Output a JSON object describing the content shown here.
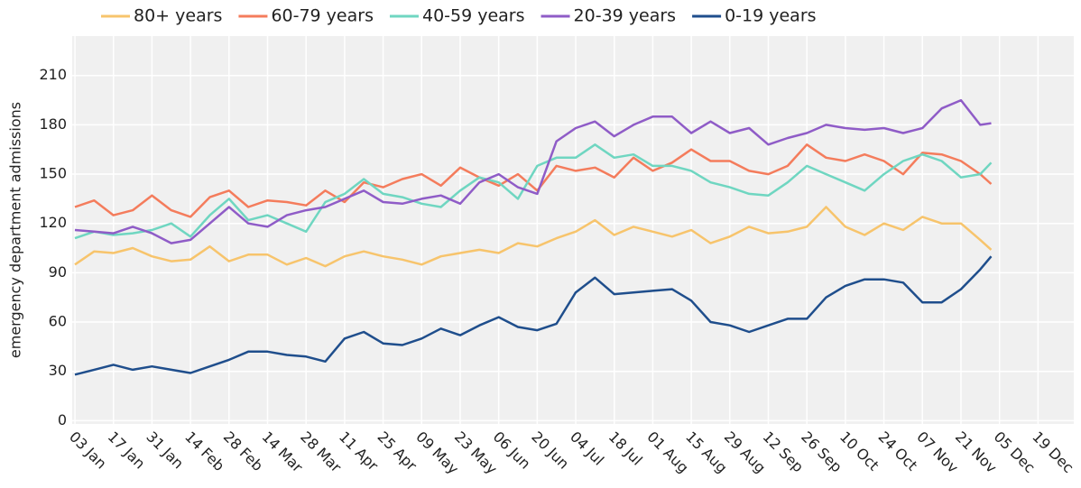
{
  "chart_data": {
    "type": "line",
    "y_label": "emergency department admissions",
    "x": [
      0,
      7,
      14,
      21,
      28,
      35,
      42,
      49,
      56,
      63,
      70,
      77,
      84,
      91,
      98,
      105,
      112,
      119,
      126,
      133,
      140,
      147,
      154,
      161,
      168,
      175,
      182,
      189,
      196,
      203,
      210,
      217,
      224,
      231,
      238,
      245,
      252,
      259,
      266,
      273,
      280,
      287,
      294,
      301,
      308,
      315,
      322,
      329,
      333
    ],
    "xlim": [
      -1,
      363
    ],
    "xticks": [
      {
        "value": 0,
        "label": "03 Jan"
      },
      {
        "value": 14,
        "label": "17 Jan"
      },
      {
        "value": 28,
        "label": "31 Jan"
      },
      {
        "value": 42,
        "label": "14 Feb"
      },
      {
        "value": 56,
        "label": "28 Feb"
      },
      {
        "value": 70,
        "label": "14 Mar"
      },
      {
        "value": 84,
        "label": "28 Mar"
      },
      {
        "value": 98,
        "label": "11 Apr"
      },
      {
        "value": 112,
        "label": "25 Apr"
      },
      {
        "value": 126,
        "label": "09 May"
      },
      {
        "value": 140,
        "label": "23 May"
      },
      {
        "value": 154,
        "label": "06 Jun"
      },
      {
        "value": 168,
        "label": "20 Jun"
      },
      {
        "value": 182,
        "label": "04 Jul"
      },
      {
        "value": 196,
        "label": "18 Jul"
      },
      {
        "value": 210,
        "label": "01 Aug"
      },
      {
        "value": 224,
        "label": "15 Aug"
      },
      {
        "value": 238,
        "label": "29 Aug"
      },
      {
        "value": 252,
        "label": "12 Sep"
      },
      {
        "value": 266,
        "label": "26 Sep"
      },
      {
        "value": 280,
        "label": "10 Oct"
      },
      {
        "value": 294,
        "label": "24 Oct"
      },
      {
        "value": 308,
        "label": "07 Nov"
      },
      {
        "value": 322,
        "label": "21 Nov"
      },
      {
        "value": 336,
        "label": "05 Dec"
      },
      {
        "value": 350,
        "label": "19 Dec"
      }
    ],
    "ylim": [
      -2,
      234
    ],
    "yticks": [
      0,
      30,
      60,
      90,
      120,
      150,
      180,
      210
    ],
    "grid": true,
    "legend": "top",
    "series": [
      {
        "name": "80+ years",
        "color": "#f7c46c",
        "values": [
          95,
          103,
          102,
          105,
          100,
          97,
          98,
          106,
          97,
          101,
          101,
          95,
          99,
          94,
          100,
          103,
          100,
          98,
          95,
          100,
          102,
          104,
          102,
          108,
          106,
          111,
          115,
          122,
          113,
          118,
          115,
          112,
          116,
          108,
          112,
          118,
          114,
          115,
          118,
          130,
          118,
          113,
          120,
          116,
          124,
          120,
          120,
          110,
          104
        ]
      },
      {
        "name": "60-79 years",
        "color": "#f47c5c",
        "values": [
          130,
          134,
          125,
          128,
          137,
          128,
          124,
          136,
          140,
          130,
          134,
          133,
          131,
          140,
          133,
          145,
          142,
          147,
          150,
          143,
          154,
          148,
          143,
          150,
          140,
          155,
          152,
          154,
          148,
          160,
          152,
          157,
          165,
          158,
          158,
          152,
          150,
          155,
          168,
          160,
          158,
          162,
          158,
          150,
          163,
          162,
          158,
          150,
          144
        ]
      },
      {
        "name": "40-59 years",
        "color": "#6fd6c1",
        "values": [
          111,
          115,
          113,
          114,
          116,
          120,
          112,
          125,
          135,
          122,
          125,
          120,
          115,
          133,
          138,
          147,
          138,
          136,
          132,
          130,
          140,
          148,
          145,
          135,
          155,
          160,
          160,
          168,
          160,
          162,
          155,
          155,
          152,
          145,
          142,
          138,
          137,
          145,
          155,
          150,
          145,
          140,
          150,
          158,
          162,
          158,
          148,
          150,
          157
        ]
      },
      {
        "name": "20-39 years",
        "color": "#8f5cc7",
        "values": [
          116,
          115,
          114,
          118,
          114,
          108,
          110,
          120,
          130,
          120,
          118,
          125,
          128,
          130,
          135,
          140,
          133,
          132,
          135,
          137,
          132,
          145,
          150,
          142,
          138,
          170,
          178,
          182,
          173,
          180,
          185,
          185,
          175,
          182,
          175,
          178,
          168,
          172,
          175,
          180,
          178,
          177,
          178,
          175,
          178,
          190,
          195,
          180,
          181
        ]
      },
      {
        "name": "0-19 years",
        "color": "#1f4e8c",
        "values": [
          28,
          31,
          34,
          31,
          33,
          31,
          29,
          33,
          37,
          42,
          42,
          40,
          39,
          36,
          50,
          54,
          47,
          46,
          50,
          56,
          52,
          58,
          63,
          57,
          55,
          59,
          78,
          87,
          77,
          78,
          79,
          80,
          73,
          60,
          58,
          54,
          58,
          62,
          62,
          75,
          82,
          86,
          86,
          84,
          72,
          72,
          80,
          92,
          100
        ]
      }
    ]
  }
}
